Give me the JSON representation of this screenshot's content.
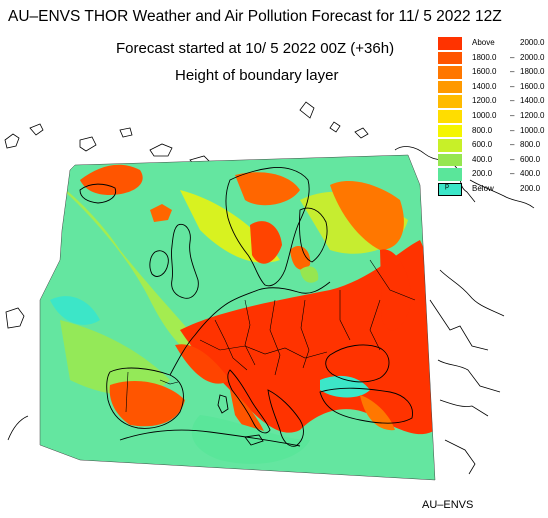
{
  "header": {
    "title": "AU–ENVS THOR Weather and Air Pollution Forecast for 11/ 5 2022  12Z",
    "forecast_started": "Forecast started at 10/ 5 2022  00Z (+36h)",
    "field": "Height of boundary layer"
  },
  "legend": {
    "entries": [
      {
        "from": "Above",
        "to": "2000.0",
        "color": "#ff3300"
      },
      {
        "from": "1800.0",
        "to": "2000.0",
        "color": "#ff5500"
      },
      {
        "from": "1600.0",
        "to": "1800.0",
        "color": "#ff7700"
      },
      {
        "from": "1400.0",
        "to": "1600.0",
        "color": "#ff9900"
      },
      {
        "from": "1200.0",
        "to": "1400.0",
        "color": "#ffbb00"
      },
      {
        "from": "1000.0",
        "to": "1200.0",
        "color": "#ffdd00"
      },
      {
        "from": "800.0",
        "to": "1000.0",
        "color": "#f5f500"
      },
      {
        "from": "600.0",
        "to": "800.0",
        "color": "#c8f028"
      },
      {
        "from": "400.0",
        "to": "600.0",
        "color": "#96e650"
      },
      {
        "from": "200.0",
        "to": "400.0",
        "color": "#5ae69a"
      },
      {
        "from": "Below",
        "to": "200.0",
        "color": "#3ce6c8"
      }
    ]
  },
  "map": {
    "domain_fill": "#64e6a0",
    "coastline_color": "#000000",
    "coastline_color_outside": "#000000"
  },
  "footer": {
    "credit": "AU–ENVS"
  }
}
